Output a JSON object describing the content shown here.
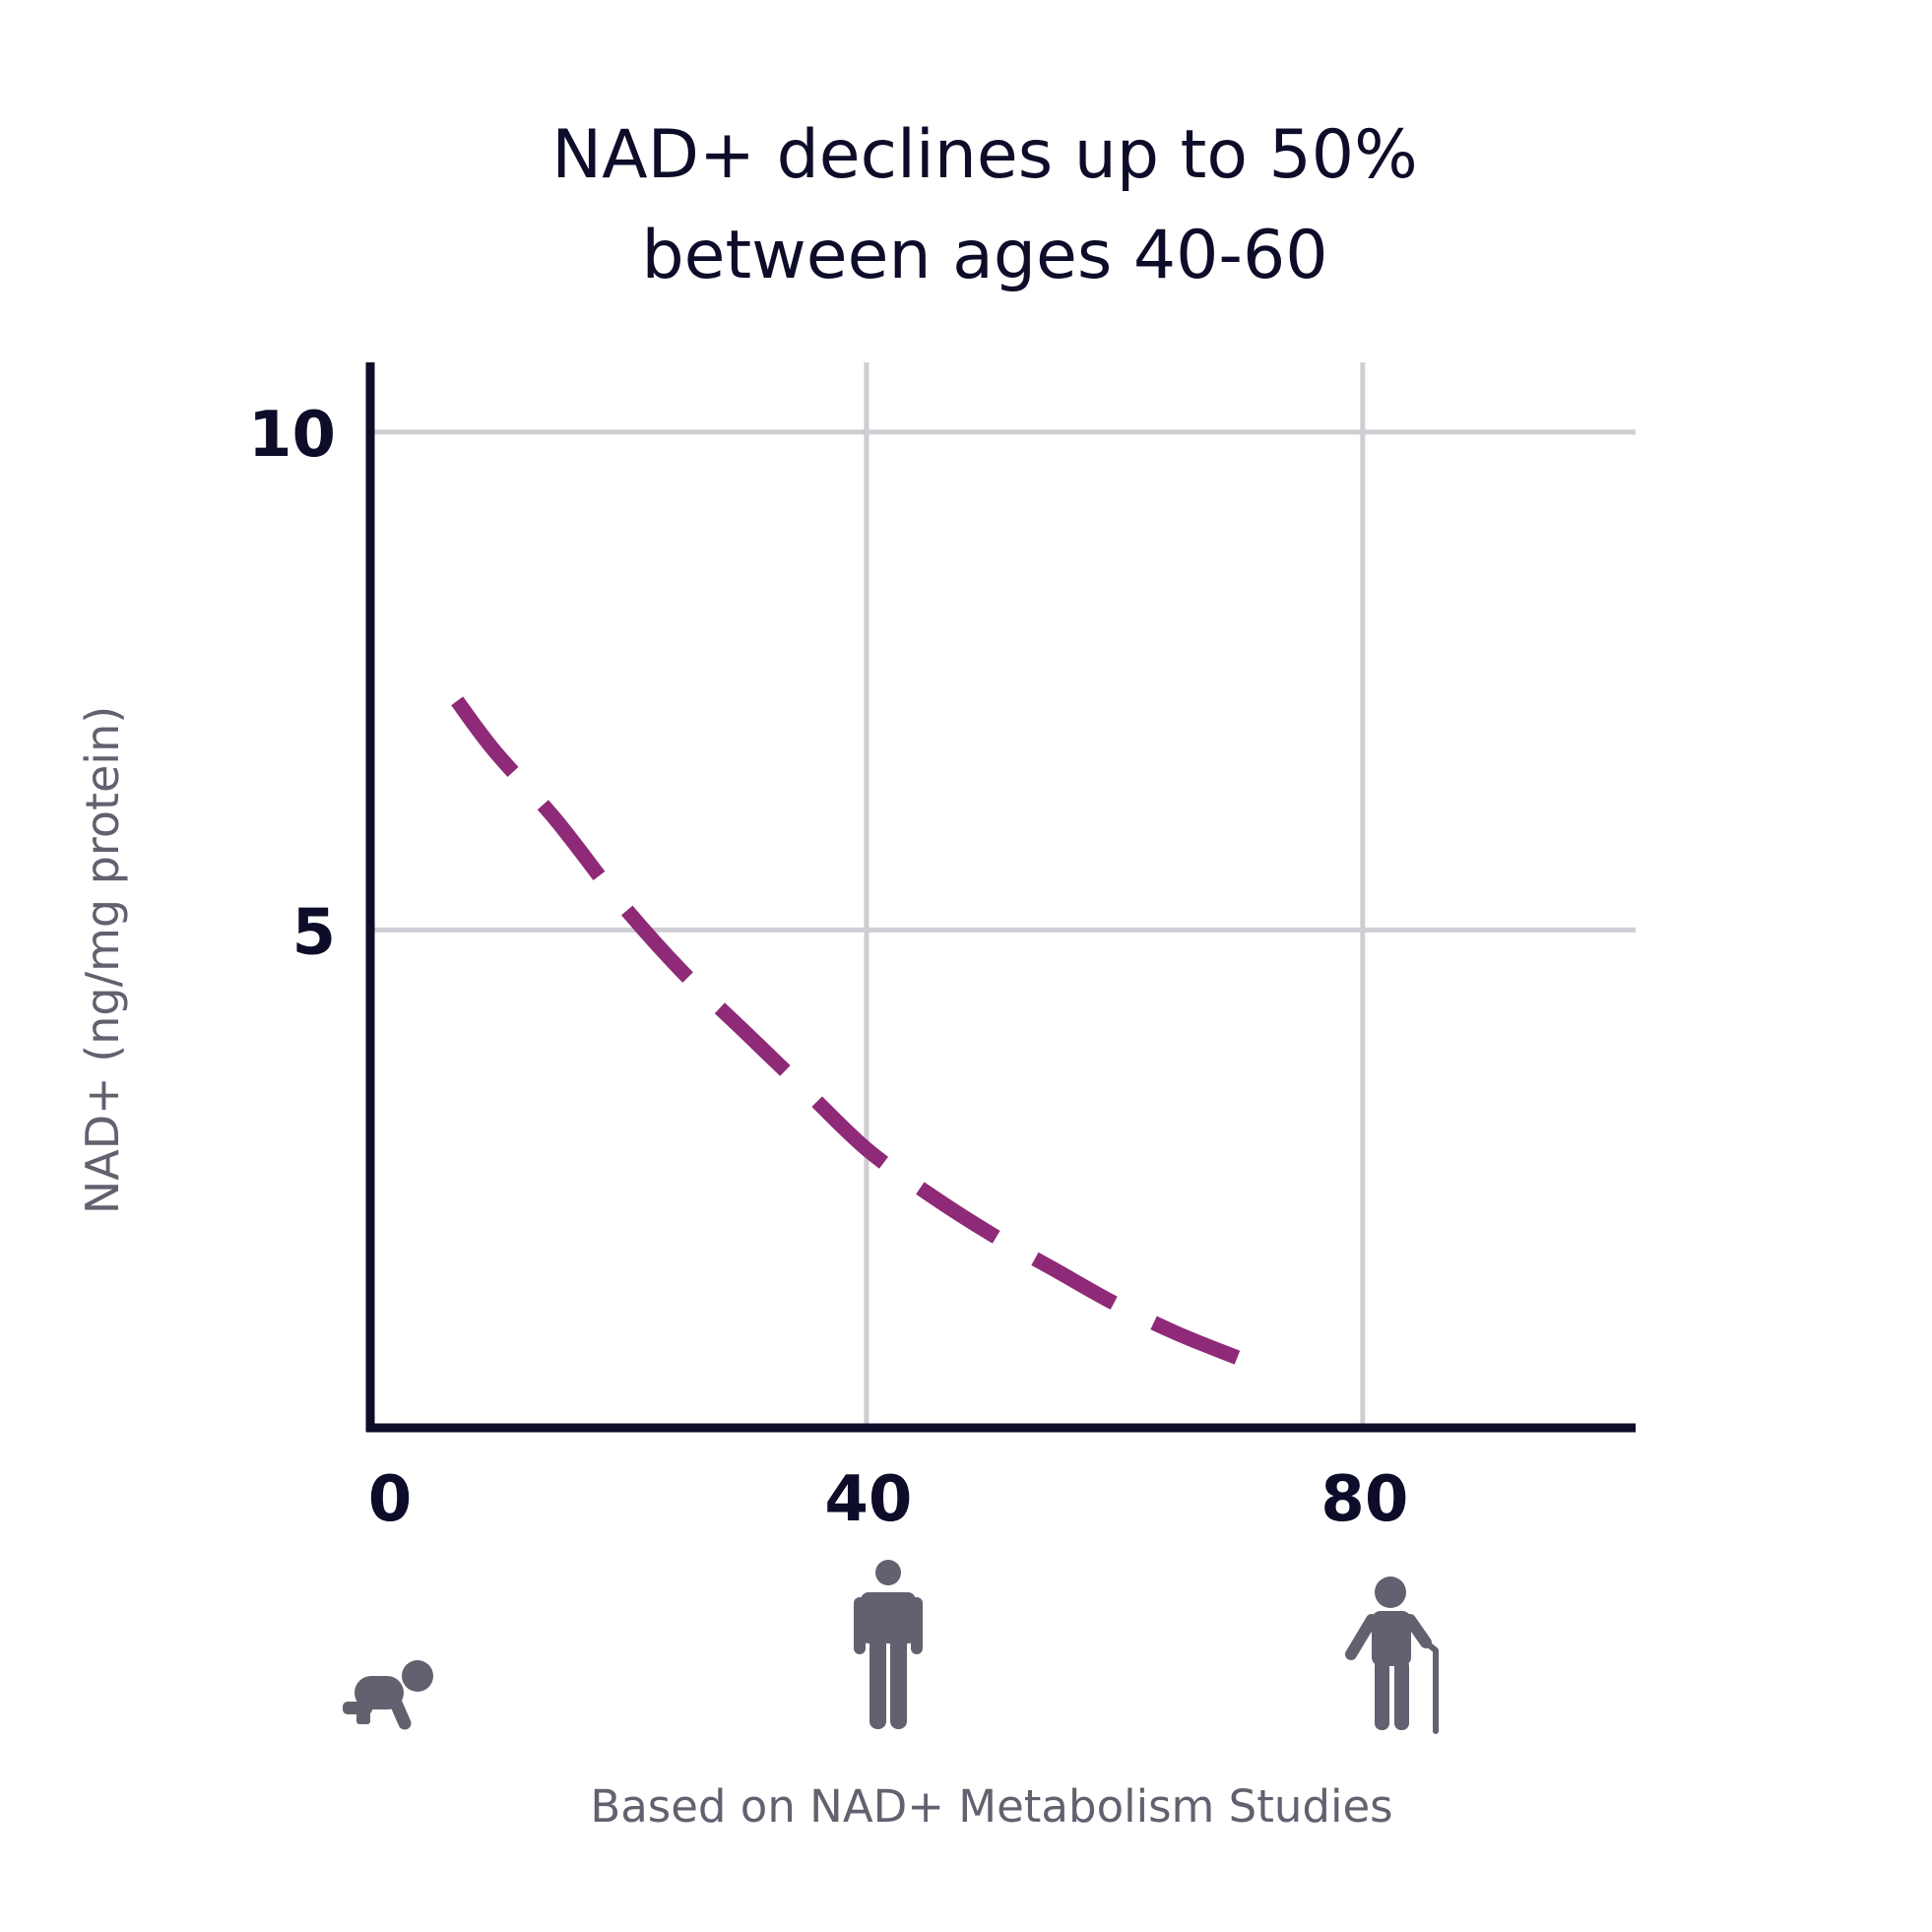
{
  "colors": {
    "title": "#0d0c29",
    "axis": "#0d0c29",
    "grid": "#cfcdd4",
    "line": "#8e2a78",
    "muted": "#63606f",
    "icon": "#63606f"
  },
  "chart_data": {
    "type": "line",
    "title_lines": [
      "NAD+ declines up to 50%",
      "between ages 40-60"
    ],
    "xlabel": "",
    "ylabel": "NAD+ (ng/mg protein)",
    "xlim": [
      0,
      102
    ],
    "ylim": [
      0,
      10.7
    ],
    "x_ticks": [
      0,
      40,
      80
    ],
    "y_ticks": [
      5,
      10
    ],
    "x_tick_labels": [
      "0",
      "40",
      "80"
    ],
    "y_tick_labels": [
      "5",
      "10"
    ],
    "grid": true,
    "line_style": "dashed",
    "series": [
      {
        "x": [
          7,
          10,
          15,
          20,
          25,
          30,
          35,
          40,
          45,
          50,
          55,
          60,
          65,
          70
        ],
        "y": [
          7.3,
          6.8,
          6.1,
          5.3,
          4.6,
          4.0,
          3.4,
          2.8,
          2.35,
          1.95,
          1.6,
          1.25,
          0.95,
          0.7
        ]
      }
    ],
    "age_icons": [
      "baby-crawling-icon",
      "adult-standing-icon",
      "elderly-cane-icon"
    ]
  },
  "footer": {
    "source_note": "Based on NAD+ Metabolism Studies"
  }
}
